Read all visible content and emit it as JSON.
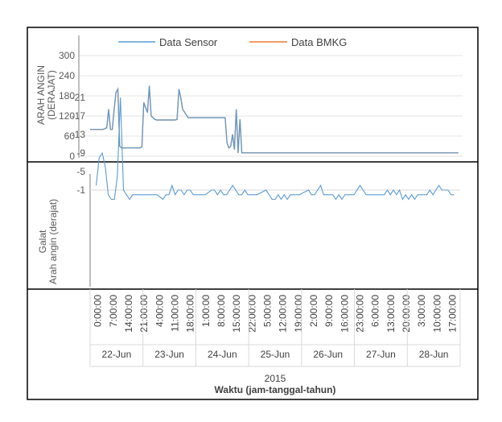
{
  "colors": {
    "sensor": "#5b9bd5",
    "bmkg": "#ed7d31",
    "green": "#70ad47",
    "axis": "#7f7f7f",
    "grid": "#d9d9d9",
    "frame": "#000000"
  },
  "chart_data": [
    {
      "type": "line",
      "ylabel_line1": "ARAH ANGIN",
      "ylabel_line2": "(DERAJAT)",
      "ylim": [
        0,
        360
      ],
      "yticks": [
        "0",
        "60",
        "120",
        "180",
        "240",
        "300"
      ],
      "legend_position": "top",
      "series": [
        {
          "name": "Data Sensor",
          "x": [
            0,
            7,
            9,
            10,
            11,
            12,
            13,
            14,
            15,
            16,
            17,
            18,
            23,
            27,
            28,
            29,
            31,
            32,
            33,
            35,
            36,
            37,
            38,
            43,
            45,
            46,
            47,
            48,
            49,
            50,
            53,
            72,
            73,
            74,
            75,
            76,
            77,
            78,
            79,
            80,
            81,
            82,
            91,
            93,
            94,
            95,
            96,
            99,
            100,
            102,
            103,
            104,
            106,
            107,
            108,
            118,
            120,
            121,
            122,
            123,
            124,
            125,
            126,
            127,
            128,
            129,
            130,
            131,
            141,
            142,
            143,
            144,
            145,
            146,
            147,
            148,
            149,
            151,
            152,
            154,
            155,
            156,
            158,
            159,
            160,
            161,
            162,
            167,
            168,
            169,
            170,
            171,
            172,
            173,
            174,
            175,
            177,
            178,
            179,
            181,
            183,
            184,
            185,
            186,
            187,
            188,
            189,
            190,
            191,
            192,
            193,
            194,
            195,
            196,
            197,
            198,
            199
          ],
          "y": [
            80,
            80,
            85,
            140,
            80,
            80,
            140,
            190,
            200,
            30,
            25,
            25,
            25,
            25,
            28,
            160,
            130,
            210,
            120,
            110,
            108,
            108,
            108,
            108,
            108,
            108,
            110,
            200,
            175,
            140,
            115,
            115,
            115,
            40,
            25,
            30,
            65,
            20,
            140,
            10,
            110,
            10,
            10,
            10,
            10,
            10,
            10,
            10,
            10,
            10,
            10,
            10,
            10,
            10,
            10,
            10,
            10,
            10,
            10,
            10,
            10,
            10,
            10,
            10,
            10,
            10,
            10,
            10,
            10,
            10,
            10,
            10,
            10,
            10,
            10,
            10,
            10,
            10,
            10,
            10,
            10,
            10,
            10,
            10,
            10,
            10,
            10,
            10,
            10,
            10,
            10,
            10,
            10,
            10,
            10,
            10,
            10,
            10,
            10,
            10,
            10,
            10,
            10,
            10,
            10,
            10,
            10,
            10,
            10,
            10,
            10,
            10,
            10,
            10,
            10,
            10,
            10
          ]
        },
        {
          "name": "Data BMKG",
          "x": [
            0,
            7,
            9,
            10,
            11,
            12,
            13,
            14,
            15,
            16,
            17,
            18,
            23,
            27,
            28,
            29,
            31,
            32,
            33,
            35,
            36,
            37,
            38,
            43,
            45,
            46,
            47,
            48,
            49,
            50,
            53,
            72,
            73,
            74,
            75,
            76,
            77,
            78,
            79,
            80,
            81,
            82,
            91,
            93,
            94,
            95,
            96,
            99,
            100,
            102,
            103,
            104,
            106,
            107,
            108,
            118,
            120,
            121,
            122,
            123,
            124,
            125,
            126,
            127,
            128,
            129,
            130,
            131,
            141,
            142,
            143,
            144,
            145,
            146,
            147,
            148,
            149,
            151,
            152,
            154,
            155,
            156,
            158,
            159,
            160,
            161,
            162,
            167,
            168,
            169,
            170,
            171,
            172,
            173,
            174,
            175,
            177,
            178,
            179,
            181,
            183,
            184,
            185,
            186,
            187,
            188,
            189,
            190,
            191,
            192,
            193,
            194,
            195,
            196,
            197,
            198,
            199
          ],
          "y": [
            80,
            80,
            85,
            140,
            80,
            80,
            140,
            190,
            200,
            30,
            25,
            25,
            25,
            25,
            28,
            160,
            130,
            210,
            120,
            110,
            108,
            108,
            108,
            108,
            108,
            108,
            110,
            200,
            175,
            140,
            115,
            115,
            115,
            40,
            25,
            30,
            65,
            20,
            140,
            10,
            110,
            10,
            10,
            10,
            10,
            10,
            10,
            10,
            10,
            10,
            10,
            10,
            10,
            10,
            10,
            10,
            10,
            10,
            10,
            10,
            10,
            10,
            10,
            10,
            10,
            10,
            10,
            10,
            10,
            10,
            10,
            10,
            10,
            10,
            10,
            10,
            10,
            10,
            10,
            10,
            10,
            10,
            10,
            10,
            10,
            10,
            10,
            10,
            10,
            10,
            10,
            10,
            10,
            10,
            10,
            10,
            10,
            10,
            10,
            10,
            10,
            10,
            10,
            10,
            10,
            10,
            10,
            10,
            10,
            10,
            10,
            10,
            10,
            10,
            10,
            10,
            10
          ]
        }
      ]
    },
    {
      "type": "line",
      "ylabel_line1": "Galat",
      "ylabel_line2": "Arah angin (derajat)",
      "ylim": [
        -21,
        2
      ],
      "yticks": [
        "-1",
        "-5",
        "-9",
        "-13",
        "-17",
        "-21"
      ],
      "series": [
        {
          "x": [
            2,
            3,
            4,
            5,
            6,
            7,
            8,
            9,
            10,
            11,
            12,
            13,
            14,
            15,
            16,
            17,
            18,
            19,
            20,
            22,
            24,
            25,
            26,
            27,
            28,
            29,
            30,
            31,
            32,
            33,
            34,
            35,
            36,
            38,
            40,
            41,
            42,
            43,
            44,
            45,
            46,
            47,
            48,
            49,
            50,
            51,
            52,
            53,
            55,
            58,
            59,
            60,
            61,
            62,
            63,
            64,
            65,
            66,
            67,
            69,
            72,
            73,
            74,
            75,
            76,
            77,
            78,
            79,
            80,
            81,
            82,
            83,
            84,
            85,
            86,
            87,
            88,
            89,
            90,
            91,
            92,
            94,
            97,
            98,
            99,
            100,
            101,
            102,
            103,
            104,
            105,
            106,
            107,
            108,
            109,
            110,
            111,
            112,
            113,
            114,
            115,
            116,
            117,
            118,
            119,
            120
          ],
          "y": [
            -2,
            -8,
            -9,
            -6,
            0,
            1,
            1,
            -4,
            -21,
            -1,
            0,
            1,
            0,
            0,
            0,
            0,
            0,
            0,
            0,
            0,
            1,
            0,
            0,
            -2,
            0,
            -1,
            -1,
            0,
            -1,
            -1,
            0,
            0,
            0,
            0,
            -1,
            -1,
            0,
            -1,
            0,
            0,
            -1,
            -2,
            -1,
            0,
            0,
            -1,
            0,
            0,
            0,
            -1,
            0,
            1,
            1,
            0,
            1,
            0,
            1,
            0,
            0,
            0,
            -1,
            0,
            0,
            -1,
            -2,
            0,
            0,
            0,
            0,
            1,
            0,
            1,
            0,
            0,
            0,
            0,
            -1,
            -2,
            -1,
            0,
            0,
            0,
            0,
            -1,
            0,
            -1,
            0,
            -1,
            1,
            0,
            1,
            0,
            1,
            0,
            0,
            0,
            0,
            -1,
            0,
            -1,
            -2,
            -1,
            -1,
            -1,
            0,
            0
          ]
        }
      ]
    }
  ],
  "xaxis": {
    "time_ticks": [
      "0:00:00",
      "7:00:00",
      "14:00:00",
      "21:00:00",
      "4:00:00",
      "11:00:00",
      "18:00:00",
      "1:00:00",
      "8:00:00",
      "15:00:00",
      "22:00:00",
      "5:00:00",
      "12:00:00",
      "19:00:00",
      "2:00:00",
      "9:00:00",
      "16:00:00",
      "23:00:00",
      "6:00:00",
      "13:00:00",
      "20:00:00",
      "3:00:00",
      "10:00:00",
      "17:00:00"
    ],
    "dates": [
      "22-Jun",
      "23-Jun",
      "24-Jun",
      "25-Jun",
      "26-Jun",
      "27-Jun",
      "28-Jun"
    ],
    "year": "2015",
    "title": "Waktu (jam-tanggal-tahun)"
  }
}
